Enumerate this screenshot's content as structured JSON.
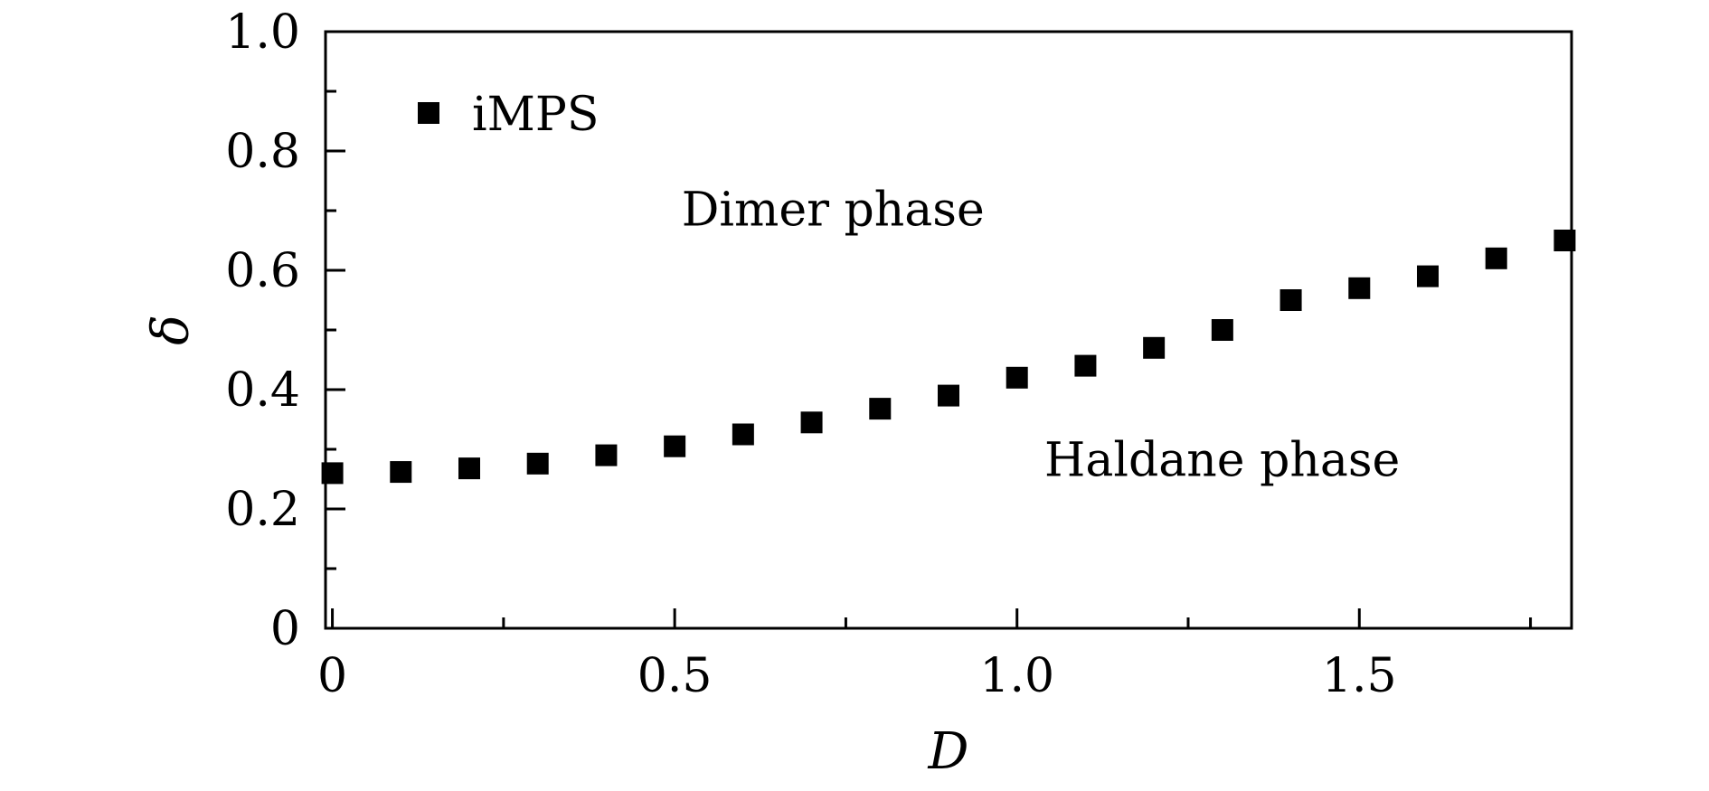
{
  "chart_data": {
    "type": "scatter",
    "xlabel": "D",
    "ylabel": "δ",
    "xlim": [
      -0.01,
      1.81
    ],
    "ylim": [
      0,
      1.0
    ],
    "x_ticks": [
      0,
      0.5,
      1.0,
      1.5
    ],
    "x_tick_labels": [
      "0",
      "0.5",
      "1.0",
      "1.5"
    ],
    "y_ticks": [
      0,
      0.2,
      0.4,
      0.6,
      0.8,
      1.0
    ],
    "y_tick_labels": [
      "0",
      "0.2",
      "0.4",
      "0.6",
      "0.8",
      "1.0"
    ],
    "grid": false,
    "legend_position": "top-left",
    "series": [
      {
        "name": "iMPS",
        "marker": "square",
        "color": "#000000",
        "x": [
          0,
          0.1,
          0.2,
          0.3,
          0.4,
          0.5,
          0.6,
          0.7,
          0.8,
          0.9,
          1.0,
          1.1,
          1.2,
          1.3,
          1.4,
          1.5,
          1.6,
          1.7,
          1.8
        ],
        "y": [
          0.26,
          0.262,
          0.268,
          0.276,
          0.29,
          0.305,
          0.325,
          0.345,
          0.368,
          0.39,
          0.42,
          0.44,
          0.47,
          0.5,
          0.55,
          0.57,
          0.59,
          0.62,
          0.65
        ]
      }
    ],
    "annotations": [
      {
        "text": "Dimer phase",
        "x": 0.51,
        "y": 0.675
      },
      {
        "text": "Haldane phase",
        "x": 1.04,
        "y": 0.255
      }
    ]
  }
}
